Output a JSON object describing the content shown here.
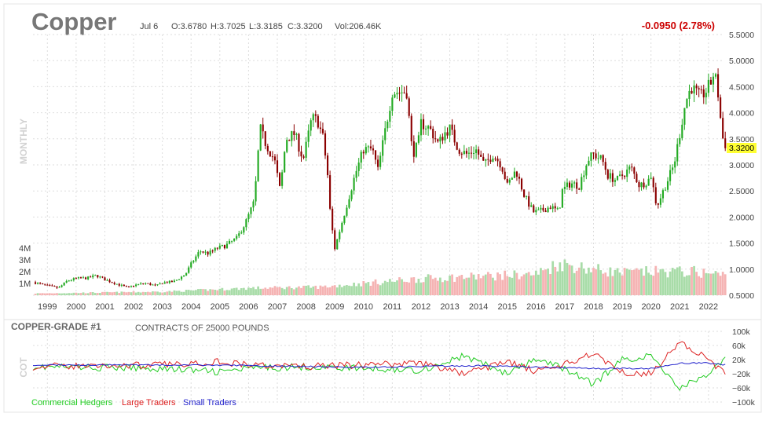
{
  "header": {
    "symbol": "Copper",
    "date": "Jul 6",
    "open": "O:3.6780",
    "high": "H:3.7025",
    "low": "L:3.3185",
    "close": "C:3.3200",
    "volume": "Vol:206.46K",
    "change": "-0.0950 (2.78%)",
    "period": "MONTHLY",
    "last_price_label": "3.3200",
    "colors": {
      "up": "#22aa22",
      "down": "#8b0000",
      "change": "#cc0000",
      "highlight": "#ffff33"
    }
  },
  "cot": {
    "title": "COPPER-GRADE #1",
    "subtitle": "CONTRACTS OF 25000 POUNDS",
    "side_label": "COT",
    "legend": [
      {
        "name": "Commercial Hedgers",
        "color": "#22cc22"
      },
      {
        "name": "Large Traders",
        "color": "#dd2222"
      },
      {
        "name": "Small Traders",
        "color": "#2222cc"
      }
    ]
  },
  "chart_data": [
    {
      "type": "candlestick",
      "title": "Copper",
      "period": "monthly",
      "y_ticks": [
        "5.5000",
        "5.0000",
        "4.5000",
        "4.0000",
        "3.5000",
        "3.0000",
        "2.5000",
        "2.0000",
        "1.5000",
        "1.0000",
        "0.5000"
      ],
      "ylim": [
        0.5,
        5.5
      ],
      "x_ticks": [
        "1999",
        "2000",
        "2001",
        "2002",
        "2003",
        "2004",
        "2005",
        "2006",
        "2007",
        "2008",
        "2009",
        "2010",
        "2011",
        "2012",
        "2013",
        "2014",
        "2015",
        "2016",
        "2017",
        "2018",
        "2019",
        "2020",
        "2021",
        "2022"
      ],
      "x_range": [
        1998.5,
        2022.55
      ],
      "grid": true,
      "last_close": 3.32,
      "price_path": [
        [
          1998.5,
          0.75
        ],
        [
          1999.0,
          0.68
        ],
        [
          1999.4,
          0.64
        ],
        [
          1999.7,
          0.78
        ],
        [
          2000.0,
          0.82
        ],
        [
          2000.4,
          0.83
        ],
        [
          2000.7,
          0.88
        ],
        [
          2001.0,
          0.8
        ],
        [
          2001.4,
          0.72
        ],
        [
          2001.8,
          0.64
        ],
        [
          2002.0,
          0.69
        ],
        [
          2002.4,
          0.73
        ],
        [
          2002.8,
          0.68
        ],
        [
          2003.0,
          0.74
        ],
        [
          2003.4,
          0.76
        ],
        [
          2003.8,
          0.9
        ],
        [
          2004.0,
          1.1
        ],
        [
          2004.3,
          1.35
        ],
        [
          2004.6,
          1.3
        ],
        [
          2004.9,
          1.4
        ],
        [
          2005.2,
          1.45
        ],
        [
          2005.6,
          1.6
        ],
        [
          2005.9,
          1.9
        ],
        [
          2006.2,
          2.3
        ],
        [
          2006.4,
          3.7
        ],
        [
          2006.6,
          3.4
        ],
        [
          2006.9,
          3.1
        ],
        [
          2007.1,
          2.5
        ],
        [
          2007.3,
          3.5
        ],
        [
          2007.6,
          3.6
        ],
        [
          2007.9,
          3.1
        ],
        [
          2008.2,
          3.9
        ],
        [
          2008.4,
          3.85
        ],
        [
          2008.6,
          3.5
        ],
        [
          2008.75,
          2.8
        ],
        [
          2008.85,
          2.0
        ],
        [
          2009.0,
          1.4
        ],
        [
          2009.2,
          1.8
        ],
        [
          2009.4,
          2.2
        ],
        [
          2009.7,
          2.8
        ],
        [
          2010.0,
          3.3
        ],
        [
          2010.3,
          3.3
        ],
        [
          2010.5,
          2.9
        ],
        [
          2010.8,
          3.8
        ],
        [
          2011.0,
          4.4
        ],
        [
          2011.2,
          4.4
        ],
        [
          2011.5,
          4.4
        ],
        [
          2011.7,
          3.2
        ],
        [
          2011.9,
          3.4
        ],
        [
          2012.0,
          3.8
        ],
        [
          2012.3,
          3.7
        ],
        [
          2012.6,
          3.4
        ],
        [
          2012.8,
          3.6
        ],
        [
          2013.0,
          3.7
        ],
        [
          2013.3,
          3.3
        ],
        [
          2013.6,
          3.2
        ],
        [
          2013.9,
          3.3
        ],
        [
          2014.2,
          3.0
        ],
        [
          2014.5,
          3.2
        ],
        [
          2014.8,
          3.0
        ],
        [
          2015.0,
          2.6
        ],
        [
          2015.3,
          2.9
        ],
        [
          2015.6,
          2.4
        ],
        [
          2015.9,
          2.1
        ],
        [
          2016.1,
          2.1
        ],
        [
          2016.5,
          2.2
        ],
        [
          2016.8,
          2.1
        ],
        [
          2016.9,
          2.5
        ],
        [
          2017.2,
          2.65
        ],
        [
          2017.5,
          2.6
        ],
        [
          2017.8,
          3.1
        ],
        [
          2018.0,
          3.2
        ],
        [
          2018.3,
          3.1
        ],
        [
          2018.5,
          2.8
        ],
        [
          2018.8,
          2.7
        ],
        [
          2019.0,
          2.8
        ],
        [
          2019.3,
          2.95
        ],
        [
          2019.6,
          2.6
        ],
        [
          2019.9,
          2.7
        ],
        [
          2020.0,
          2.8
        ],
        [
          2020.2,
          2.2
        ],
        [
          2020.5,
          2.6
        ],
        [
          2020.8,
          3.0
        ],
        [
          2021.0,
          3.6
        ],
        [
          2021.2,
          4.2
        ],
        [
          2021.4,
          4.5
        ],
        [
          2021.7,
          4.3
        ],
        [
          2021.9,
          4.4
        ],
        [
          2022.1,
          4.6
        ],
        [
          2022.2,
          4.8
        ],
        [
          2022.35,
          4.3
        ],
        [
          2022.45,
          3.7
        ],
        [
          2022.55,
          3.32
        ]
      ]
    },
    {
      "type": "bar",
      "title": "Volume",
      "y_ticks": [
        "4M",
        "3M",
        "2M",
        "1M"
      ],
      "ylim": [
        0,
        4000000
      ],
      "volume_path": [
        [
          1998.5,
          150000
        ],
        [
          2003.0,
          300000
        ],
        [
          2006.0,
          600000
        ],
        [
          2008.5,
          700000
        ],
        [
          2010.0,
          1000000
        ],
        [
          2012.0,
          1400000
        ],
        [
          2014.0,
          1600000
        ],
        [
          2016.0,
          1800000
        ],
        [
          2016.8,
          2700000
        ],
        [
          2018.0,
          2200000
        ],
        [
          2019.0,
          1900000
        ],
        [
          2020.0,
          2000000
        ],
        [
          2021.5,
          2000000
        ],
        [
          2022.55,
          1700000
        ]
      ]
    },
    {
      "type": "line",
      "title": "COPPER-GRADE #1",
      "y_ticks": [
        "100k",
        "60k",
        "20k",
        "−20k",
        "−60k",
        "−100k"
      ],
      "ylim": [
        -100000,
        100000
      ],
      "grid": true,
      "series": [
        {
          "name": "Commercial Hedgers",
          "color": "#22cc22",
          "path": [
            [
              1998.5,
              0
            ],
            [
              2003.0,
              -5000
            ],
            [
              2005.0,
              -15000
            ],
            [
              2006.0,
              -5000
            ],
            [
              2008.0,
              0
            ],
            [
              2010.0,
              -5000
            ],
            [
              2012.0,
              -10000
            ],
            [
              2013.5,
              30000
            ],
            [
              2015.0,
              -20000
            ],
            [
              2016.0,
              20000
            ],
            [
              2017.0,
              -5000
            ],
            [
              2018.0,
              -50000
            ],
            [
              2019.0,
              20000
            ],
            [
              2020.0,
              30000
            ],
            [
              2021.0,
              -60000
            ],
            [
              2022.0,
              -20000
            ],
            [
              2022.55,
              20000
            ]
          ]
        },
        {
          "name": "Large Traders",
          "color": "#dd2222",
          "path": [
            [
              1998.5,
              0
            ],
            [
              2003.0,
              5000
            ],
            [
              2005.0,
              15000
            ],
            [
              2006.0,
              5000
            ],
            [
              2008.0,
              0
            ],
            [
              2010.0,
              5000
            ],
            [
              2012.0,
              10000
            ],
            [
              2013.5,
              -20000
            ],
            [
              2015.0,
              15000
            ],
            [
              2016.0,
              -15000
            ],
            [
              2017.0,
              5000
            ],
            [
              2018.0,
              40000
            ],
            [
              2019.0,
              -15000
            ],
            [
              2020.0,
              -20000
            ],
            [
              2021.0,
              70000
            ],
            [
              2022.0,
              20000
            ],
            [
              2022.55,
              -20000
            ]
          ]
        },
        {
          "name": "Small Traders",
          "color": "#2222cc",
          "path": [
            [
              1998.5,
              5000
            ],
            [
              2003.0,
              5000
            ],
            [
              2006.0,
              3000
            ],
            [
              2010.0,
              -2000
            ],
            [
              2014.0,
              3000
            ],
            [
              2018.0,
              -5000
            ],
            [
              2020.0,
              -5000
            ],
            [
              2021.0,
              10000
            ],
            [
              2022.0,
              10000
            ],
            [
              2022.55,
              5000
            ]
          ]
        }
      ]
    }
  ]
}
